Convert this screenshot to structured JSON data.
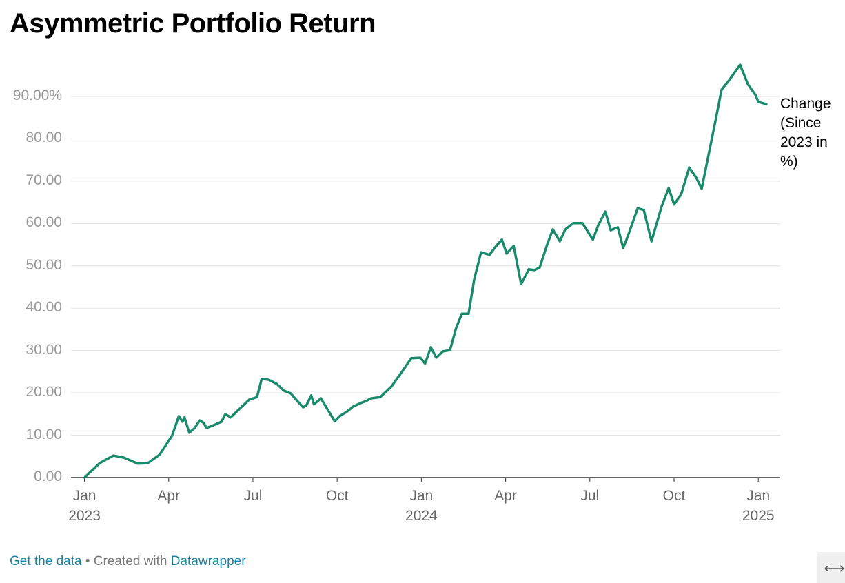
{
  "chart_data": {
    "type": "line",
    "title": "Asymmetric Portfolio Return",
    "x": [
      2023.0,
      2023.045,
      2023.086,
      2023.117,
      2023.158,
      2023.188,
      2023.223,
      2023.26,
      2023.28,
      2023.291,
      2023.297,
      2023.311,
      2023.326,
      2023.342,
      2023.354,
      2023.362,
      2023.387,
      2023.407,
      2023.418,
      2023.434,
      2023.461,
      2023.489,
      2023.512,
      2023.526,
      2023.547,
      2023.571,
      2023.592,
      2023.612,
      2023.628,
      2023.649,
      2023.659,
      2023.673,
      2023.681,
      2023.702,
      2023.716,
      2023.743,
      2023.757,
      2023.778,
      2023.798,
      2023.823,
      2023.837,
      2023.85,
      2023.878,
      2023.911,
      2023.946,
      2023.97,
      2023.997,
      2024.011,
      2024.028,
      2024.044,
      2024.064,
      2024.085,
      2024.103,
      2024.12,
      2024.14,
      2024.157,
      2024.177,
      2024.202,
      2024.222,
      2024.239,
      2024.253,
      2024.274,
      2024.296,
      2024.319,
      2024.335,
      2024.351,
      2024.372,
      2024.39,
      2024.411,
      2024.427,
      2024.451,
      2024.478,
      2024.509,
      2024.525,
      2024.546,
      2024.562,
      2024.583,
      2024.599,
      2024.615,
      2024.642,
      2024.66,
      2024.683,
      2024.713,
      2024.734,
      2024.75,
      2024.771,
      2024.795,
      2024.816,
      2024.832,
      2024.846,
      2024.873,
      2024.891,
      2024.914,
      2024.946,
      2024.969,
      2024.992,
      2025.0,
      2025.024
    ],
    "series": [
      {
        "name": "Change (Since 2023 in %)",
        "color": "#1a8a6c",
        "values": [
          0,
          3.4,
          5.2,
          4.7,
          3.3,
          3.4,
          5.4,
          9.9,
          14.5,
          13.2,
          14.2,
          10.6,
          11.6,
          13.5,
          12.9,
          11.7,
          12.5,
          13.2,
          15.0,
          14.2,
          16.3,
          18.4,
          19.0,
          23.3,
          23.1,
          22.1,
          20.5,
          19.9,
          18.4,
          16.6,
          17.1,
          19.4,
          17.3,
          18.7,
          16.8,
          13.3,
          14.5,
          15.5,
          16.8,
          17.7,
          18.1,
          18.7,
          19.0,
          21.5,
          25.4,
          28.2,
          28.3,
          26.9,
          30.8,
          28.3,
          29.8,
          30.1,
          35.3,
          38.7,
          38.7,
          46.9,
          53.2,
          52.6,
          54.7,
          56.2,
          52.9,
          54.7,
          45.7,
          49.2,
          49.0,
          49.6,
          54.7,
          58.6,
          55.8,
          58.6,
          60.1,
          60.1,
          56.2,
          59.6,
          62.8,
          58.4,
          59.1,
          54.2,
          57.5,
          63.6,
          63.2,
          55.8,
          64.0,
          68.4,
          64.5,
          66.9,
          73.2,
          70.8,
          68.2,
          73.7,
          84.3,
          91.6,
          93.9,
          97.5,
          92.9,
          90.3,
          88.7,
          88.2
        ]
      }
    ],
    "xlim": [
      2022.96,
      2025.065
    ],
    "xticks": [
      {
        "value": 2023,
        "label": "Jan 2023"
      },
      {
        "value": 2023.25,
        "label": "Apr"
      },
      {
        "value": 2023.5,
        "label": "Jul"
      },
      {
        "value": 2023.75,
        "label": "Oct"
      },
      {
        "value": 2024,
        "label": "Jan 2024"
      },
      {
        "value": 2024.25,
        "label": "Apr"
      },
      {
        "value": 2024.5,
        "label": "Jul"
      },
      {
        "value": 2024.75,
        "label": "Oct"
      },
      {
        "value": 2025,
        "label": "Jan 2025"
      }
    ],
    "ylim": [
      0,
      90
    ],
    "yticks": [
      {
        "value": 0,
        "label": "0.00"
      },
      {
        "value": 10,
        "label": "10.00"
      },
      {
        "value": 20,
        "label": "20.00"
      },
      {
        "value": 30,
        "label": "30.00"
      },
      {
        "value": 40,
        "label": "40.00"
      },
      {
        "value": 50,
        "label": "50.00"
      },
      {
        "value": 60,
        "label": "60.00"
      },
      {
        "value": 70,
        "label": "70.00"
      },
      {
        "value": 80,
        "label": "80.00"
      },
      {
        "value": 90,
        "label": "90.00%"
      }
    ],
    "grid": true
  },
  "footer": {
    "get_data": "Get the data",
    "separator": "•",
    "created_with": "Created with",
    "tool": "Datawrapper"
  }
}
